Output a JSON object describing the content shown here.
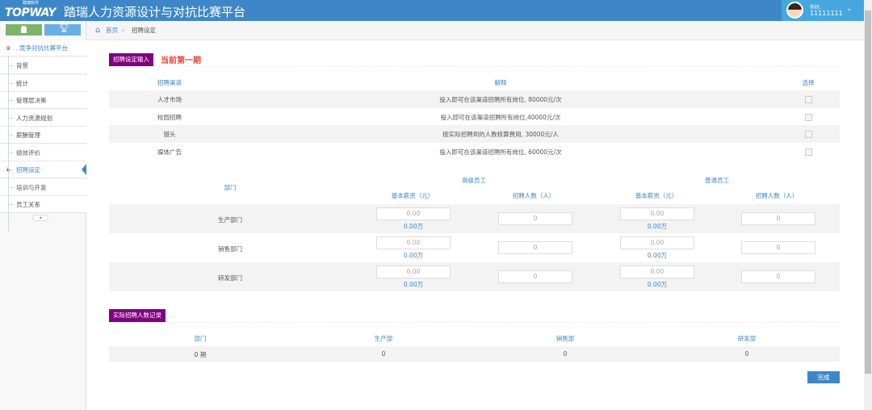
{
  "header": {
    "logo": "TOPWAY",
    "logo_sub": "踏瑞软件",
    "title": "踏瑞人力资源设计与对抗比赛平台",
    "greeting": "你好,",
    "user_id": "11111111"
  },
  "sidebar": {
    "platform": "竞争对抗比赛平台",
    "items": [
      {
        "label": "背景"
      },
      {
        "label": "统计"
      },
      {
        "label": "管理层决策"
      },
      {
        "label": "人力资源规划"
      },
      {
        "label": "薪酬管理"
      },
      {
        "label": "绩效评价"
      },
      {
        "label": "招聘设定",
        "active": true
      },
      {
        "label": "培训与开发"
      },
      {
        "label": "员工关系"
      }
    ]
  },
  "breadcrumb": {
    "home": "首页",
    "current": "招聘设定"
  },
  "section1": {
    "label": "招聘设定输入",
    "period": "当前第一期"
  },
  "channels": {
    "headers": [
      "招聘渠道",
      "解释",
      "选择"
    ],
    "rows": [
      {
        "name": "人才市场",
        "desc": "投入即可在该渠道招聘所有岗位, 80000元/次"
      },
      {
        "name": "校园招聘",
        "desc": "投入即可在该渠道招聘所有岗位,40000元/次"
      },
      {
        "name": "猎头",
        "desc": "按实际招聘到的人数核算费用, 30000元/人"
      },
      {
        "name": "媒体广告",
        "desc": "投入即可在该渠道招聘所有岗位, 60000元/次"
      }
    ]
  },
  "recruit": {
    "dept_header": "部门",
    "senior": "高级员工",
    "regular": "普通员工",
    "salary_header": "基本薪资（元）",
    "count_header": "招聘人数（人）",
    "rows": [
      {
        "dept": "生产部门",
        "s_salary": "0.00",
        "s_wan": "0.00万",
        "s_count": "0",
        "r_salary": "0.00",
        "r_wan": "0.00万",
        "r_count": "0"
      },
      {
        "dept": "销售部门",
        "s_salary": "0.00",
        "s_wan": "0.00万",
        "s_count": "0",
        "r_salary": "0.00",
        "r_wan": "0.00万",
        "r_count": "0"
      },
      {
        "dept": "研发部门",
        "s_salary": "0.00",
        "s_wan": "0.00万",
        "s_count": "0",
        "r_salary": "0.00",
        "r_wan": "0.00万",
        "r_count": "0"
      }
    ]
  },
  "section2": {
    "label": "实际招聘人数记录"
  },
  "actual": {
    "headers": [
      "部门",
      "生产部",
      "销售部",
      "研发部"
    ],
    "row": [
      "0 期",
      "0",
      "0",
      "0"
    ]
  },
  "done_button": "完成",
  "colors": {
    "header": "#3d87c8",
    "accent_purple": "#800080",
    "period_red": "#e8453c"
  }
}
